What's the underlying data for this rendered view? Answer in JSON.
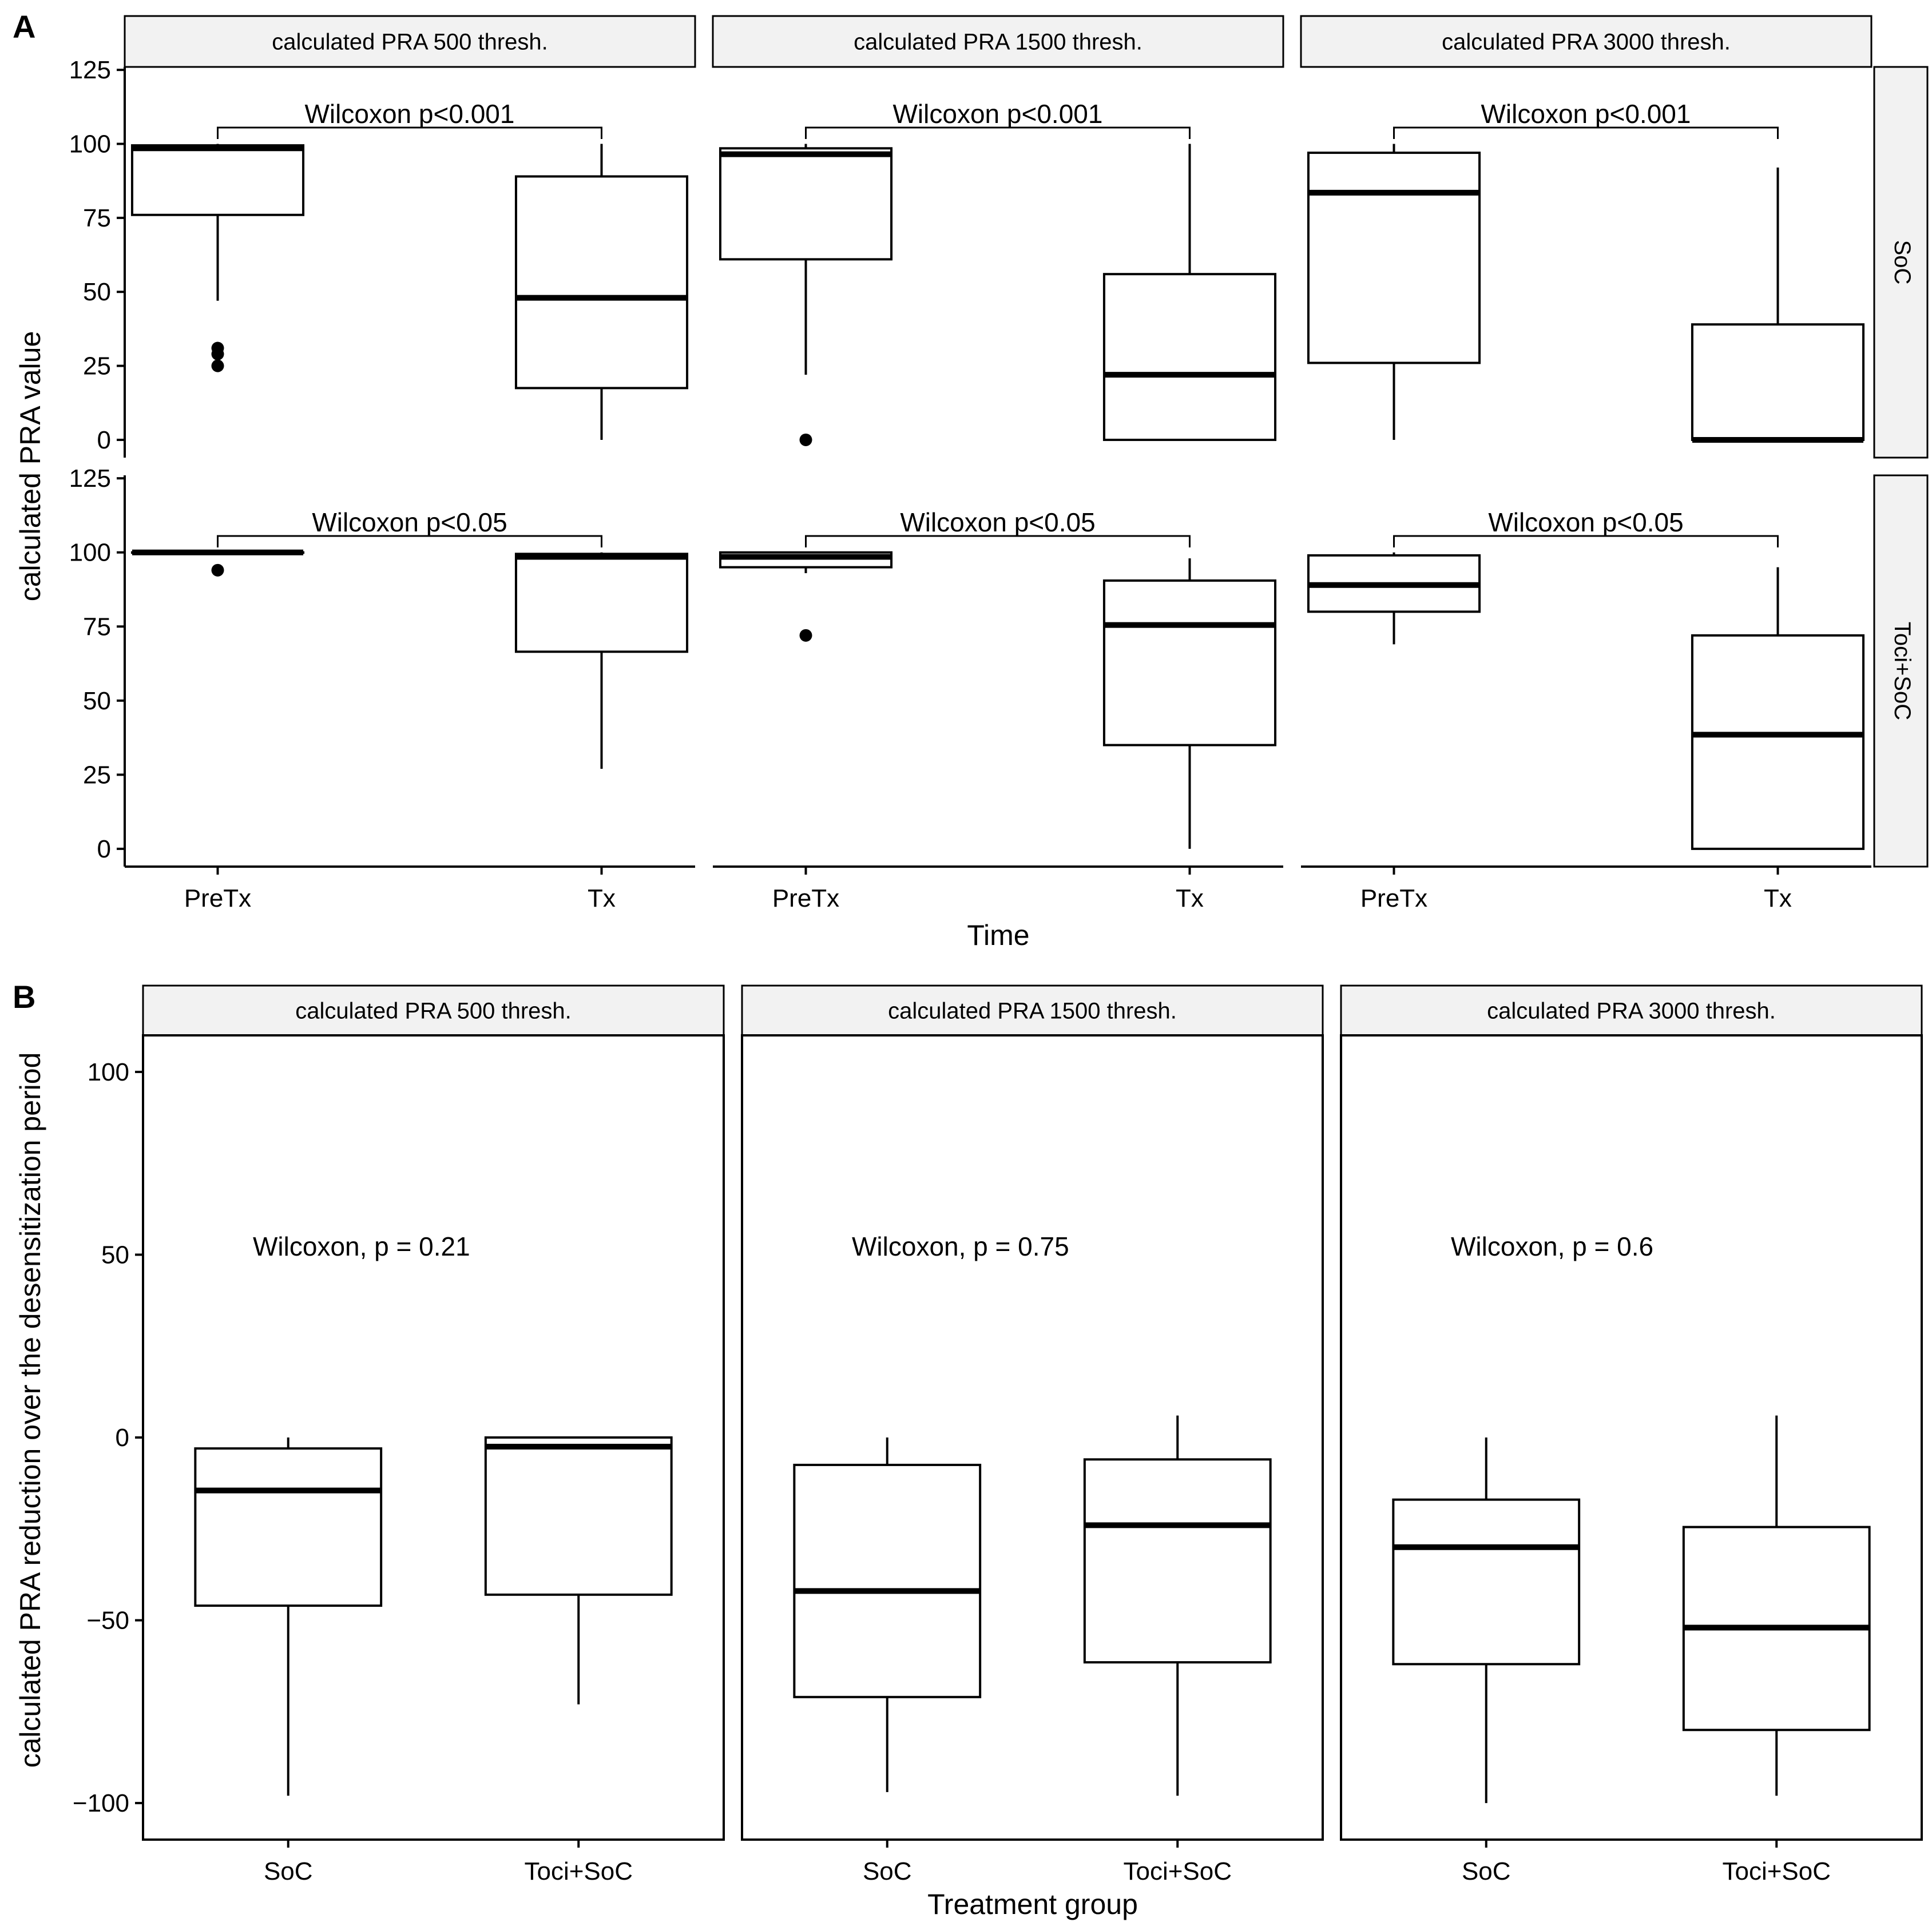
{
  "figure": {
    "panel_a_tag": "A",
    "panel_b_tag": "B"
  },
  "chart_data": [
    {
      "id": "A",
      "type": "boxplot",
      "xlabel": "Time",
      "ylabel": "calculated PRA value",
      "ylim": [
        -6,
        126
      ],
      "yticks": [
        0,
        25,
        50,
        75,
        100,
        125
      ],
      "categories": [
        "PreTx",
        "Tx"
      ],
      "facet_cols": [
        "calculated PRA 500 thresh.",
        "calculated PRA 1500 thresh.",
        "calculated PRA 3000 thresh."
      ],
      "facet_rows": [
        "SoC",
        "Toci+SoC"
      ],
      "panels": [
        {
          "row": 0,
          "col": 0,
          "annotation": "Wilcoxon p<0.001",
          "boxes": [
            {
              "category": "PreTx",
              "min": 47,
              "q1": 76,
              "median": 98.5,
              "q3": 99.5,
              "max": 100,
              "outliers": [
                31,
                29,
                25
              ]
            },
            {
              "category": "Tx",
              "min": 0,
              "q1": 17.5,
              "median": 48,
              "q3": 89,
              "max": 100,
              "outliers": []
            }
          ]
        },
        {
          "row": 0,
          "col": 1,
          "annotation": "Wilcoxon p<0.001",
          "boxes": [
            {
              "category": "PreTx",
              "min": 22,
              "q1": 61,
              "median": 96.5,
              "q3": 98.5,
              "max": 100,
              "outliers": [
                0
              ]
            },
            {
              "category": "Tx",
              "min": 0,
              "q1": 0,
              "median": 22,
              "q3": 56,
              "max": 100,
              "outliers": []
            }
          ]
        },
        {
          "row": 0,
          "col": 2,
          "annotation": "Wilcoxon p<0.001",
          "boxes": [
            {
              "category": "PreTx",
              "min": 0,
              "q1": 26,
              "median": 83.5,
              "q3": 97,
              "max": 100,
              "outliers": []
            },
            {
              "category": "Tx",
              "min": 0,
              "q1": 0,
              "median": 0,
              "q3": 39,
              "max": 92,
              "outliers": []
            }
          ]
        },
        {
          "row": 1,
          "col": 0,
          "annotation": "Wilcoxon p<0.05",
          "boxes": [
            {
              "category": "PreTx",
              "min": 100,
              "q1": 100,
              "median": 100,
              "q3": 100,
              "max": 100,
              "outliers": [
                94
              ]
            },
            {
              "category": "Tx",
              "min": 27,
              "q1": 66.5,
              "median": 98.5,
              "q3": 99.5,
              "max": 100,
              "outliers": []
            }
          ]
        },
        {
          "row": 1,
          "col": 1,
          "annotation": "Wilcoxon p<0.05",
          "boxes": [
            {
              "category": "PreTx",
              "min": 93,
              "q1": 95,
              "median": 98.5,
              "q3": 100,
              "max": 100,
              "outliers": [
                72
              ]
            },
            {
              "category": "Tx",
              "min": 0,
              "q1": 35,
              "median": 75.5,
              "q3": 90.5,
              "max": 98,
              "outliers": []
            }
          ]
        },
        {
          "row": 1,
          "col": 2,
          "annotation": "Wilcoxon p<0.05",
          "boxes": [
            {
              "category": "PreTx",
              "min": 69,
              "q1": 80,
              "median": 89,
              "q3": 99,
              "max": 100,
              "outliers": []
            },
            {
              "category": "Tx",
              "min": 0,
              "q1": 0,
              "median": 38.5,
              "q3": 72,
              "max": 95,
              "outliers": []
            }
          ]
        }
      ]
    },
    {
      "id": "B",
      "type": "boxplot",
      "xlabel": "Treatment group",
      "ylabel": "calculated PRA reduction over the desensitization period",
      "ylim": [
        -110,
        110
      ],
      "yticks": [
        -100,
        -50,
        0,
        50,
        100
      ],
      "categories": [
        "SoC",
        "Toci+SoC"
      ],
      "facet_cols": [
        "calculated PRA 500 thresh.",
        "calculated PRA 1500 thresh.",
        "calculated PRA 3000 thresh."
      ],
      "panels": [
        {
          "col": 0,
          "annotation": "Wilcoxon, p = 0.21",
          "boxes": [
            {
              "category": "SoC",
              "min": -98,
              "q1": -46,
              "median": -14.5,
              "q3": -3,
              "max": 0,
              "outliers": []
            },
            {
              "category": "Toci+SoC",
              "min": -73,
              "q1": -43,
              "median": -2.5,
              "q3": 0,
              "max": 0,
              "outliers": []
            }
          ]
        },
        {
          "col": 1,
          "annotation": "Wilcoxon, p = 0.75",
          "boxes": [
            {
              "category": "SoC",
              "min": -97,
              "q1": -71,
              "median": -42,
              "q3": -7.5,
              "max": 0,
              "outliers": []
            },
            {
              "category": "Toci+SoC",
              "min": -98,
              "q1": -61.5,
              "median": -24,
              "q3": -6,
              "max": 6,
              "outliers": []
            }
          ]
        },
        {
          "col": 2,
          "annotation": "Wilcoxon, p = 0.6",
          "boxes": [
            {
              "category": "SoC",
              "min": -100,
              "q1": -62,
              "median": -30,
              "q3": -17,
              "max": 0,
              "outliers": []
            },
            {
              "category": "Toci+SoC",
              "min": -98,
              "q1": -80,
              "median": -52,
              "q3": -24.5,
              "max": 6,
              "outliers": []
            }
          ]
        }
      ]
    }
  ]
}
